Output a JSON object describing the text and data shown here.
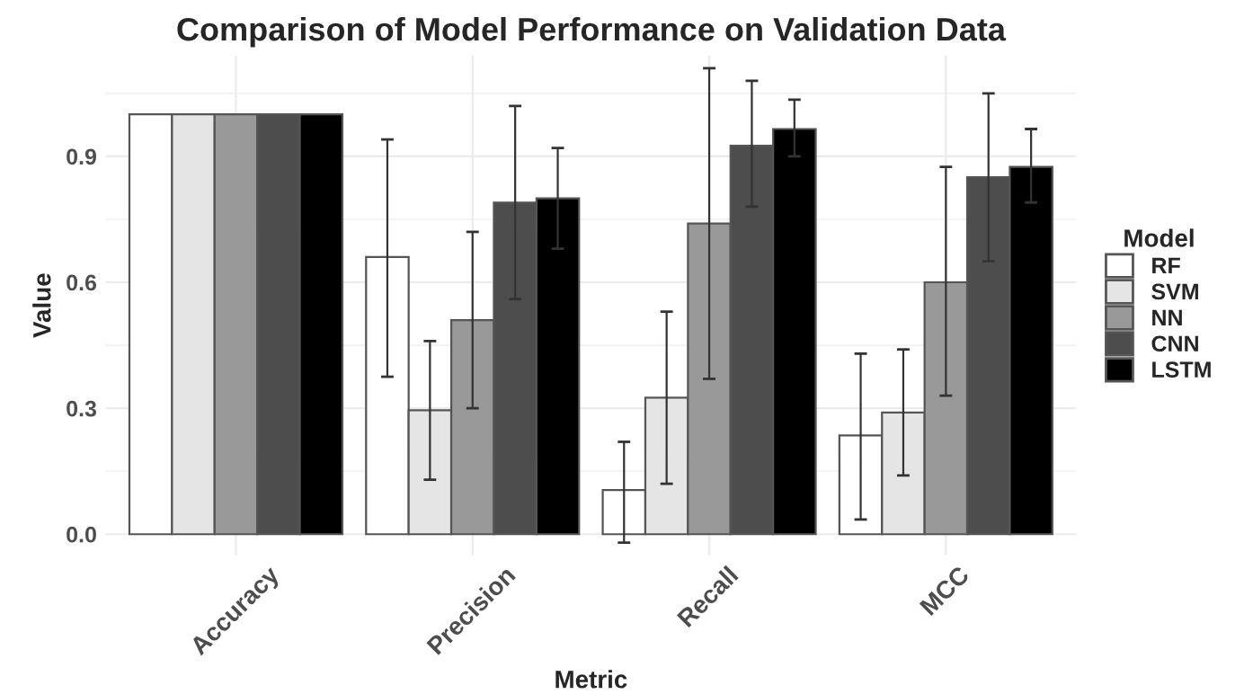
{
  "chart_data": {
    "type": "bar",
    "title": "Comparison of Model Performance on Validation Data",
    "xlabel": "Metric",
    "ylabel": "Value",
    "legend_title": "Model",
    "categories": [
      "Accuracy",
      "Precision",
      "Recall",
      "MCC"
    ],
    "series": [
      {
        "name": "RF",
        "color": "#ffffff",
        "values": [
          1.0,
          0.66,
          0.105,
          0.235
        ],
        "errors": [
          null,
          [
            0.375,
            0.94
          ],
          [
            -0.02,
            0.22
          ],
          [
            0.035,
            0.43
          ]
        ]
      },
      {
        "name": "SVM",
        "color": "#e5e5e5",
        "values": [
          1.0,
          0.295,
          0.325,
          0.29
        ],
        "errors": [
          null,
          [
            0.13,
            0.46
          ],
          [
            0.12,
            0.53
          ],
          [
            0.14,
            0.44
          ]
        ]
      },
      {
        "name": "NN",
        "color": "#999999",
        "values": [
          1.0,
          0.51,
          0.74,
          0.6
        ],
        "errors": [
          null,
          [
            0.3,
            0.72
          ],
          [
            0.37,
            1.11
          ],
          [
            0.33,
            0.875
          ]
        ]
      },
      {
        "name": "CNN",
        "color": "#4d4d4d",
        "values": [
          1.0,
          0.79,
          0.925,
          0.85
        ],
        "errors": [
          null,
          [
            0.56,
            1.02
          ],
          [
            0.78,
            1.08
          ],
          [
            0.65,
            1.05
          ]
        ]
      },
      {
        "name": "LSTM",
        "color": "#000000",
        "values": [
          1.0,
          0.8,
          0.965,
          0.875
        ],
        "errors": [
          null,
          [
            0.68,
            0.92
          ],
          [
            0.9,
            1.035
          ],
          [
            0.79,
            0.965
          ]
        ]
      }
    ],
    "ylim": [
      -0.05,
      1.14
    ],
    "yticks": [
      {
        "value": 0,
        "label": "0.0"
      },
      0.3,
      0.6,
      0.9
    ],
    "grid": true,
    "legend": "right"
  }
}
